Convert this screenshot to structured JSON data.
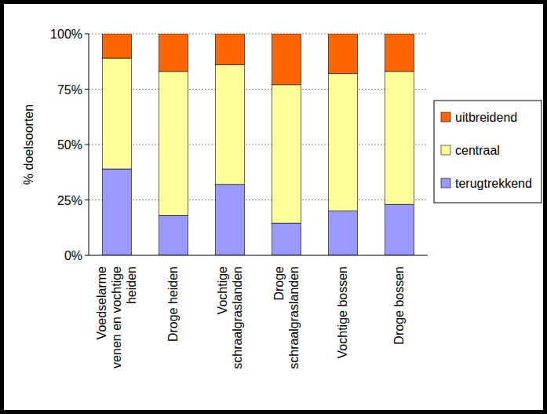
{
  "chart_data": {
    "type": "bar",
    "stacked": true,
    "ylabel": "% doelsoorten",
    "categories": [
      "Voedselarme\nvenen en vochtige\nheiden",
      "Droge heiden",
      "Vochtige\nschraalgraslanden",
      "Droge\nschraalgraslanden",
      "Vochtige bossen",
      "Droge bossen"
    ],
    "series": [
      {
        "name": "terugtrekkend",
        "color": "#9999ff",
        "values": [
          39,
          18,
          32,
          14.5,
          20,
          23
        ]
      },
      {
        "name": "centraal",
        "color": "#ffff99",
        "values": [
          50,
          65,
          54,
          62.5,
          62,
          60
        ]
      },
      {
        "name": "uitbreidend",
        "color": "#ff6600",
        "values": [
          11,
          17,
          14,
          23,
          18,
          17
        ]
      }
    ],
    "ylim": [
      0,
      100
    ],
    "yticks": [
      {
        "value": 0,
        "label": "0%"
      },
      {
        "value": 25,
        "label": "25%"
      },
      {
        "value": 50,
        "label": "50%"
      },
      {
        "value": 75,
        "label": "75%"
      },
      {
        "value": 100,
        "label": "100%"
      }
    ],
    "grid": true,
    "legend": "right"
  }
}
